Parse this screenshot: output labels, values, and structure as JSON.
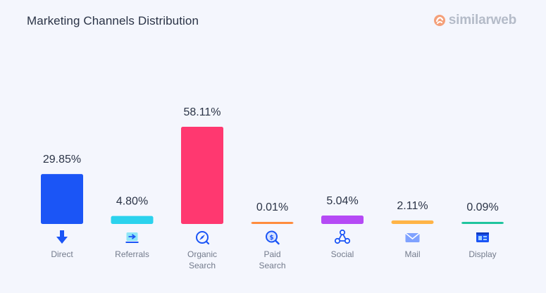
{
  "header": {
    "title": "Marketing Channels Distribution",
    "brand": "similarweb"
  },
  "chart_data": {
    "type": "bar",
    "title": "Marketing Channels Distribution",
    "xlabel": "",
    "ylabel": "",
    "ylim": [
      0,
      100
    ],
    "grid": false,
    "categories": [
      "Direct",
      "Referrals",
      "Organic Search",
      "Paid Search",
      "Social",
      "Mail",
      "Display"
    ],
    "category_lines": [
      [
        "Direct"
      ],
      [
        "Referrals"
      ],
      [
        "Organic",
        "Search"
      ],
      [
        "Paid",
        "Search"
      ],
      [
        "Social"
      ],
      [
        "Mail"
      ],
      [
        "Display"
      ]
    ],
    "values": [
      29.85,
      4.8,
      58.11,
      0.01,
      5.04,
      2.11,
      0.09
    ],
    "value_labels": [
      "29.85%",
      "4.80%",
      "58.11%",
      "0.01%",
      "5.04%",
      "2.11%",
      "0.09%"
    ],
    "colors": [
      "#1b55f6",
      "#2bd2ed",
      "#ff3870",
      "#ff8c3d",
      "#b54af5",
      "#ffb447",
      "#1fc49e"
    ],
    "icons": [
      "arrow-down-icon",
      "referral-arrow-icon",
      "compass-icon",
      "dollar-search-icon",
      "social-share-icon",
      "envelope-icon",
      "display-ad-icon"
    ]
  }
}
